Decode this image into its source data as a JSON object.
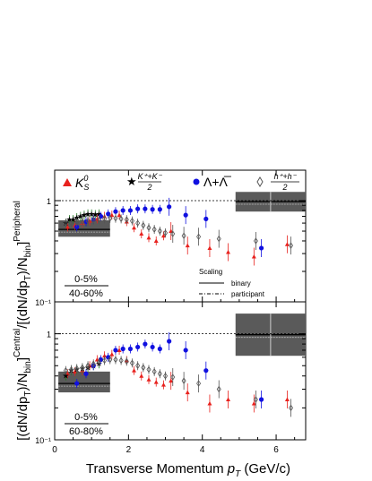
{
  "figure": {
    "ylabel_text": "[(dN/dp_T)/N_bin]^Central / [(dN/dp_T)/N_bin]^Peripheral",
    "xaxis_label": "Transverse Momentum",
    "xaxis_var": "p",
    "xaxis_sub": "T",
    "xaxis_unit": "(GeV/c)",
    "ylabel_top": "[(dN/dp",
    "ylabel_T": "T",
    "ylabel_mid": ")/N",
    "ylabel_bin": "bin",
    "ylabel_close": "]",
    "ylabel_sup": "Central",
    "ylabel_slash": "/[(dN/dp",
    "ylabel_T2": "T",
    "ylabel_mid2": ")/N",
    "ylabel_bin2": "bin",
    "ylabel_close2": "]",
    "ylabel_sup2": "Peripheral"
  },
  "legend": {
    "k0s_main": "K",
    "k0s_sup": "0",
    "k0s_sub": "S",
    "kpm_num": "K⁺+K⁻",
    "kpm_den": "2",
    "lambda": "Λ+Λ̅",
    "hpm_num": "h⁺+h⁻",
    "hpm_den": "2",
    "scaling_title": "Scaling",
    "binary": "binary",
    "participant": "participant"
  },
  "panels": {
    "top": {
      "ratio_num": "0-5%",
      "ratio_den": "40-60%"
    },
    "bottom": {
      "ratio_num": "0-5%",
      "ratio_den": "60-80%"
    }
  },
  "colors": {
    "k0s": "#e8211d",
    "kpm": "#1e7d1e",
    "lambda": "#1010e0",
    "hpm": "#555555",
    "band": "#5a5a5a"
  },
  "chart_data": [
    {
      "type": "scatter",
      "panel": "top",
      "xlim": [
        0,
        6.8
      ],
      "ylim": [
        0.1,
        2
      ],
      "yscale": "log",
      "xticks": [
        0,
        2,
        4,
        6
      ],
      "yticks": [
        {
          "v": 1,
          "label": "1"
        },
        {
          "v": 0.1,
          "label": "10⁻¹"
        }
      ],
      "reference_line": 1,
      "series": [
        {
          "name": "K0S",
          "marker": "triangle",
          "points": [
            [
              0.35,
              0.55
            ],
            [
              0.55,
              0.57
            ],
            [
              0.75,
              0.6
            ],
            [
              0.95,
              0.63
            ],
            [
              1.15,
              0.66
            ],
            [
              1.35,
              0.7
            ],
            [
              1.55,
              0.72
            ],
            [
              1.75,
              0.72
            ],
            [
              1.95,
              0.62
            ],
            [
              2.15,
              0.54
            ],
            [
              2.35,
              0.47
            ],
            [
              2.55,
              0.43
            ],
            [
              2.75,
              0.4
            ],
            [
              2.95,
              0.45
            ],
            [
              3.15,
              0.5
            ],
            [
              3.6,
              0.36
            ],
            [
              4.2,
              0.34
            ],
            [
              4.7,
              0.31
            ],
            [
              5.4,
              0.28
            ],
            [
              6.3,
              0.37
            ]
          ]
        },
        {
          "name": "(K+ + K-)/2",
          "marker": "star",
          "points": [
            [
              0.3,
              0.6
            ],
            [
              0.4,
              0.65
            ],
            [
              0.5,
              0.65
            ],
            [
              0.6,
              0.68
            ],
            [
              0.7,
              0.7
            ],
            [
              0.8,
              0.72
            ],
            [
              0.9,
              0.74
            ],
            [
              1.0,
              0.74
            ],
            [
              1.1,
              0.73
            ],
            [
              1.2,
              0.74
            ]
          ]
        },
        {
          "name": "Lambda + AntiLambda",
          "marker": "circle",
          "points": [
            [
              0.6,
              0.55
            ],
            [
              0.85,
              0.62
            ],
            [
              1.05,
              0.65
            ],
            [
              1.25,
              0.7
            ],
            [
              1.45,
              0.74
            ],
            [
              1.65,
              0.78
            ],
            [
              1.85,
              0.8
            ],
            [
              2.05,
              0.8
            ],
            [
              2.25,
              0.83
            ],
            [
              2.45,
              0.83
            ],
            [
              2.65,
              0.82
            ],
            [
              2.85,
              0.82
            ],
            [
              3.1,
              0.87
            ],
            [
              3.55,
              0.72
            ],
            [
              4.1,
              0.66
            ],
            [
              5.6,
              0.34
            ]
          ]
        },
        {
          "name": "(h+ + h-)/2",
          "marker": "diamond",
          "points": [
            [
              0.3,
              0.6
            ],
            [
              0.45,
              0.6
            ],
            [
              0.6,
              0.61
            ],
            [
              0.75,
              0.62
            ],
            [
              0.9,
              0.63
            ],
            [
              1.05,
              0.64
            ],
            [
              1.2,
              0.65
            ],
            [
              1.35,
              0.66
            ],
            [
              1.5,
              0.67
            ],
            [
              1.65,
              0.67
            ],
            [
              1.8,
              0.66
            ],
            [
              1.95,
              0.65
            ],
            [
              2.1,
              0.63
            ],
            [
              2.25,
              0.6
            ],
            [
              2.4,
              0.57
            ],
            [
              2.55,
              0.54
            ],
            [
              2.7,
              0.52
            ],
            [
              2.85,
              0.5
            ],
            [
              3.0,
              0.48
            ],
            [
              3.2,
              0.47
            ],
            [
              3.5,
              0.45
            ],
            [
              3.9,
              0.44
            ],
            [
              4.45,
              0.42
            ],
            [
              5.45,
              0.4
            ],
            [
              6.4,
              0.36
            ]
          ]
        }
      ],
      "bands": [
        {
          "x": [
            0.1,
            1.5
          ],
          "y": [
            0.44,
            0.64
          ],
          "scaling": "binary",
          "line": 0.52
        },
        {
          "x": [
            4.9,
            6.8
          ],
          "y": [
            0.78,
            1.22
          ],
          "scaling": "participant",
          "line": 0.98
        }
      ]
    },
    {
      "type": "scatter",
      "panel": "bottom",
      "xlim": [
        0,
        6.8
      ],
      "ylim": [
        0.1,
        2
      ],
      "yscale": "log",
      "xticks": [
        0,
        2,
        4,
        6
      ],
      "xticklabels": [
        "0",
        "2",
        "4",
        "6"
      ],
      "yticks": [
        {
          "v": 1,
          "label": "1"
        },
        {
          "v": 0.1,
          "label": "10⁻¹"
        }
      ],
      "reference_line": 1,
      "series": [
        {
          "name": "K0S",
          "marker": "triangle",
          "points": [
            [
              0.35,
              0.42
            ],
            [
              0.55,
              0.44
            ],
            [
              0.75,
              0.45
            ],
            [
              0.95,
              0.5
            ],
            [
              1.15,
              0.57
            ],
            [
              1.35,
              0.62
            ],
            [
              1.55,
              0.64
            ],
            [
              1.75,
              0.7
            ],
            [
              1.95,
              0.56
            ],
            [
              2.15,
              0.45
            ],
            [
              2.35,
              0.4
            ],
            [
              2.55,
              0.37
            ],
            [
              2.75,
              0.35
            ],
            [
              2.95,
              0.33
            ],
            [
              3.15,
              0.36
            ],
            [
              3.6,
              0.28
            ],
            [
              4.2,
              0.22
            ],
            [
              4.7,
              0.24
            ],
            [
              5.4,
              0.22
            ],
            [
              6.3,
              0.24
            ]
          ]
        },
        {
          "name": "(K+ + K-)/2",
          "marker": "star",
          "points": [
            [
              0.3,
              0.4
            ],
            [
              0.45,
              0.45
            ],
            [
              0.6,
              0.46
            ],
            [
              0.75,
              0.47
            ],
            [
              0.9,
              0.48
            ],
            [
              1.05,
              0.5
            ],
            [
              1.2,
              0.52
            ]
          ]
        },
        {
          "name": "Lambda + AntiLambda",
          "marker": "circle",
          "points": [
            [
              0.6,
              0.34
            ],
            [
              0.85,
              0.42
            ],
            [
              1.05,
              0.5
            ],
            [
              1.25,
              0.57
            ],
            [
              1.45,
              0.6
            ],
            [
              1.65,
              0.7
            ],
            [
              1.85,
              0.72
            ],
            [
              2.05,
              0.72
            ],
            [
              2.25,
              0.75
            ],
            [
              2.45,
              0.8
            ],
            [
              2.65,
              0.75
            ],
            [
              2.85,
              0.72
            ],
            [
              3.1,
              0.85
            ],
            [
              3.55,
              0.7
            ],
            [
              4.1,
              0.45
            ],
            [
              5.6,
              0.24
            ]
          ]
        },
        {
          "name": "(h+ + h-)/2",
          "marker": "diamond",
          "points": [
            [
              0.3,
              0.45
            ],
            [
              0.45,
              0.46
            ],
            [
              0.6,
              0.47
            ],
            [
              0.75,
              0.48
            ],
            [
              0.9,
              0.5
            ],
            [
              1.05,
              0.52
            ],
            [
              1.2,
              0.54
            ],
            [
              1.35,
              0.56
            ],
            [
              1.5,
              0.57
            ],
            [
              1.65,
              0.57
            ],
            [
              1.8,
              0.56
            ],
            [
              1.95,
              0.55
            ],
            [
              2.1,
              0.53
            ],
            [
              2.25,
              0.5
            ],
            [
              2.4,
              0.48
            ],
            [
              2.55,
              0.46
            ],
            [
              2.7,
              0.44
            ],
            [
              2.85,
              0.42
            ],
            [
              3.0,
              0.4
            ],
            [
              3.2,
              0.39
            ],
            [
              3.5,
              0.36
            ],
            [
              3.9,
              0.34
            ],
            [
              4.45,
              0.3
            ],
            [
              5.45,
              0.24
            ],
            [
              6.4,
              0.2
            ]
          ]
        }
      ],
      "bands": [
        {
          "x": [
            0.1,
            1.5
          ],
          "y": [
            0.28,
            0.44
          ],
          "scaling": "binary",
          "line": 0.34
        },
        {
          "x": [
            4.9,
            6.8
          ],
          "y": [
            0.62,
            1.55
          ],
          "scaling": "participant",
          "line": 0.98
        }
      ]
    }
  ]
}
